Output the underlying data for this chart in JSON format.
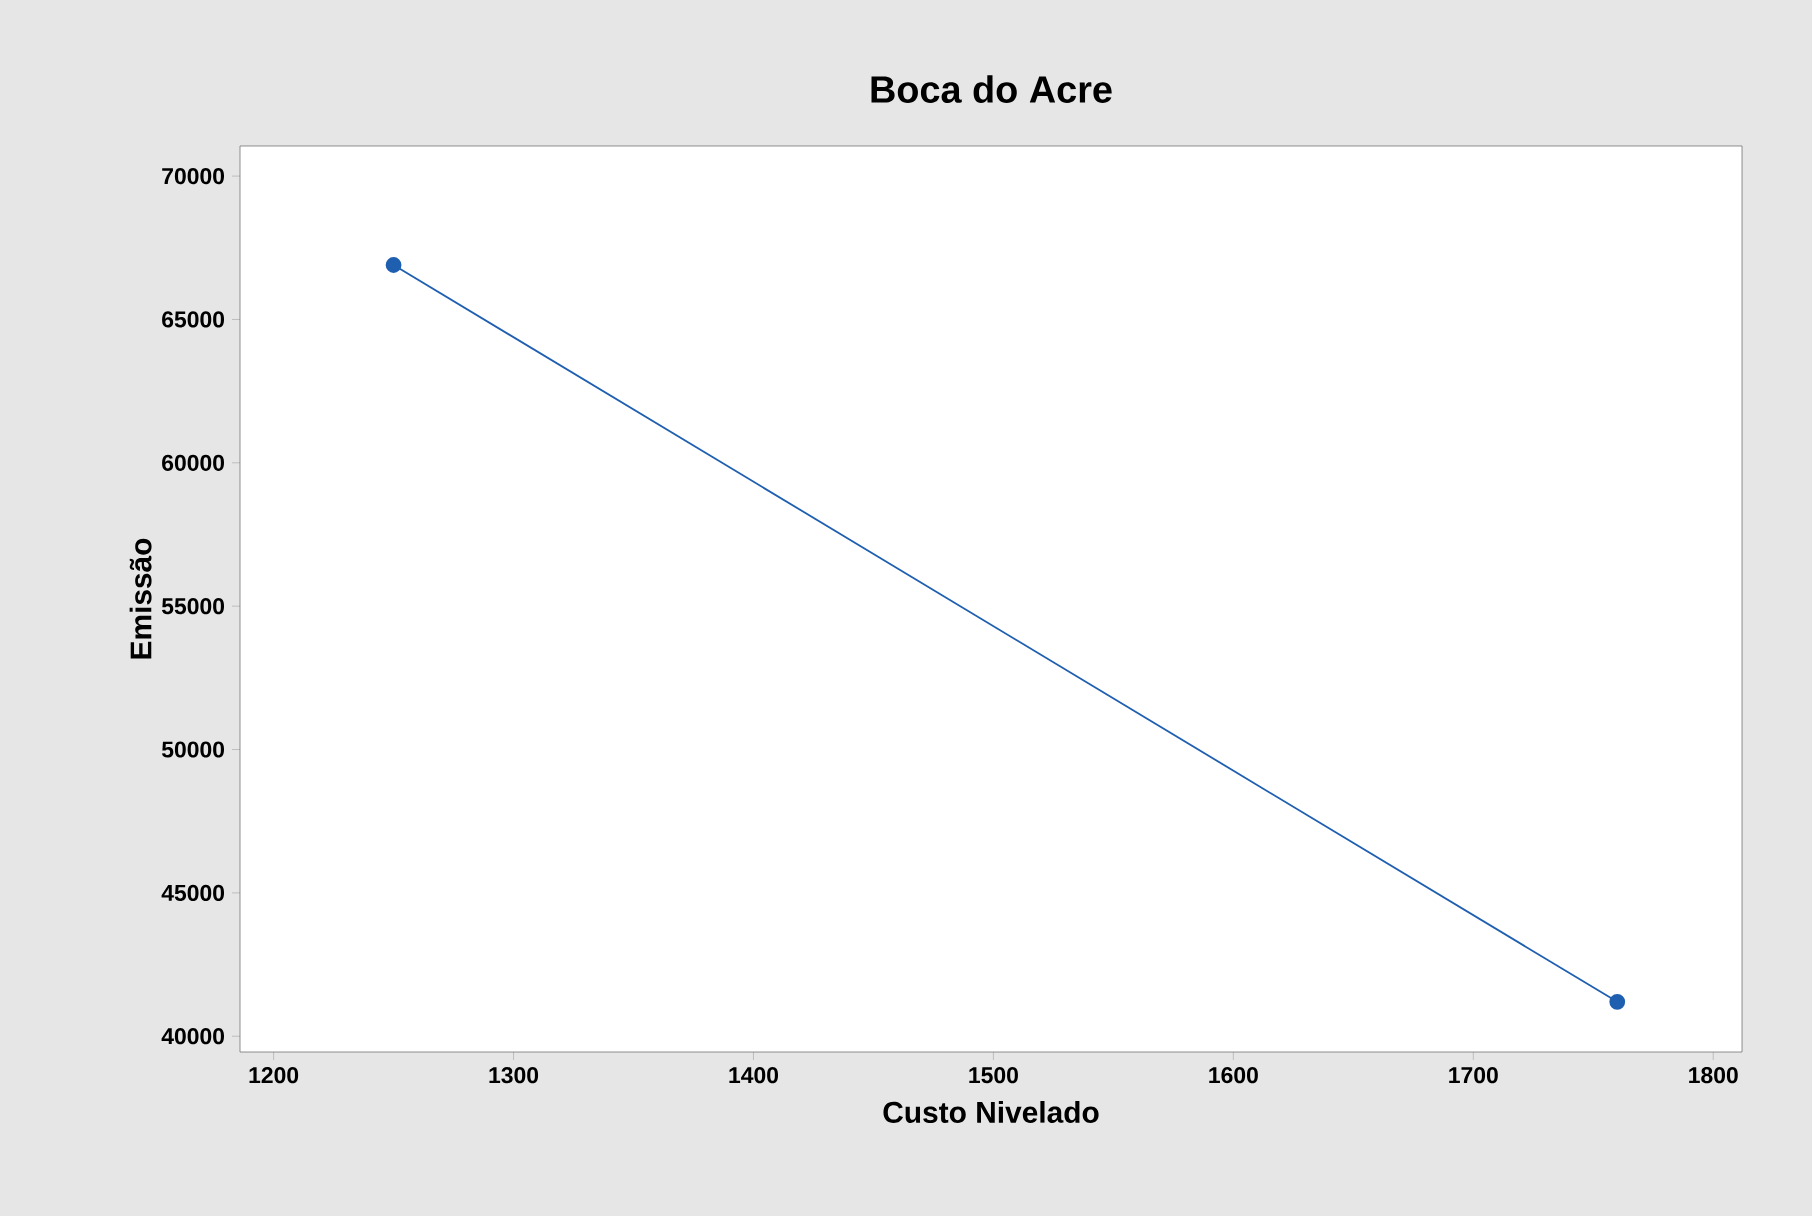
{
  "chart_data": {
    "type": "line",
    "title": "Boca do Acre",
    "xlabel": "Custo Nivelado",
    "ylabel": "Emissão",
    "x": [
      1250,
      1760
    ],
    "series": [
      {
        "color": "#1f5fb0",
        "values": [
          66900,
          41200
        ]
      }
    ],
    "marker": "circle",
    "line_style": "solid",
    "xlim": [
      1186,
      1812
    ],
    "xticks": [
      1200,
      1300,
      1400,
      1500,
      1600,
      1700,
      1800
    ],
    "ylim": [
      39450,
      71050
    ],
    "yticks": [
      40000,
      45000,
      50000,
      55000,
      60000,
      65000,
      70000
    ],
    "grid": false
  }
}
